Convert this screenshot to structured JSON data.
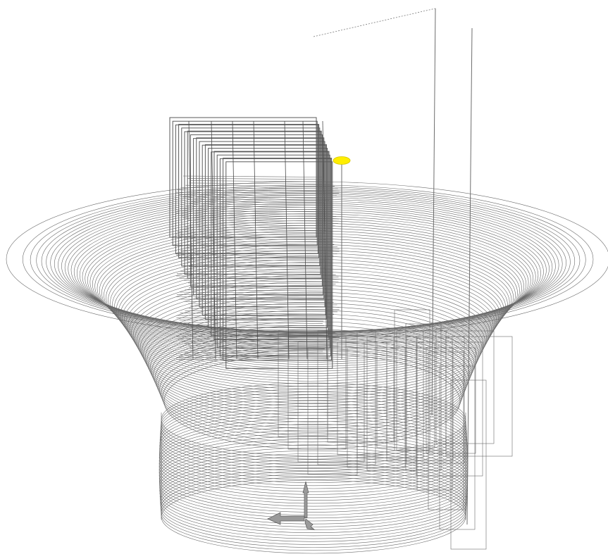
{
  "viewport": {
    "background": "#ffffff",
    "line_color": "#6a6a6a",
    "highlight_color": "#ffee00"
  },
  "scene": {
    "objects": [
      {
        "name": "funnel-mesh",
        "kind": "wireframe-surface"
      },
      {
        "name": "cylinder-mesh",
        "kind": "wireframe-surface"
      },
      {
        "name": "stacked-frames",
        "kind": "wireframe-planes"
      },
      {
        "name": "selected-marker",
        "kind": "highlight-ellipse"
      }
    ],
    "axis_gizmo": {
      "icon": "xyz-axes-icon"
    }
  }
}
